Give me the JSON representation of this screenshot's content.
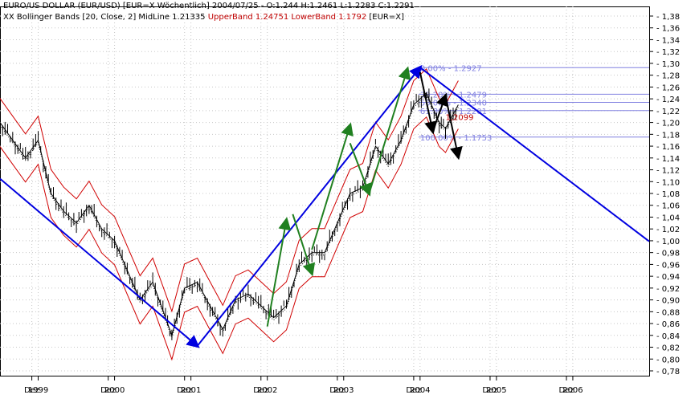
{
  "header": {
    "line1": "EURO/US DOLLAR (EUR/USD) [EUR=X  Wöchentlich] 2004/07/25 - O:1.244 H:1.2461 L:1.2283 C:1.2291",
    "line2_prefix": "XX Bollinger Bands [20, Close, 2] MidLine 1.21335 ",
    "line2_upper": "UpperBand 1.24751 LowerBand 1.1792",
    "line2_suffix": " [EUR=X]"
  },
  "chart_data": {
    "type": "line",
    "y_ticks": [
      "1,38",
      "1,36",
      "1,34",
      "1,32",
      "1,30",
      "1,28",
      "1,26",
      "1,24",
      "1,22",
      "1,20",
      "1,18",
      "1,16",
      "1,14",
      "1,12",
      "1,10",
      "1,08",
      "1,06",
      "1,04",
      "1,02",
      "1,00",
      "0,98",
      "0,96",
      "0,94",
      "0,92",
      "0,90",
      "0,88",
      "0,86",
      "0,84",
      "0,82",
      "0,80",
      "0,78"
    ],
    "ylim": [
      0.78,
      1.38
    ],
    "x_ticks": [
      "Dez",
      "1999",
      "Dez",
      "2000",
      "Dez",
      "2001",
      "Dez",
      "2002",
      "Dez",
      "2003",
      "Dez",
      "2004",
      "Dez",
      "2005",
      "Dez",
      "2006"
    ],
    "xlim": [
      "1998-07",
      "2007-01"
    ],
    "fib_levels": [
      {
        "label": "0.00% - 1.2927",
        "value": 1.2927
      },
      {
        "label": "38.20% - 1.2479",
        "value": 1.2479
      },
      {
        "label": "50.00% - 1.2340",
        "value": 1.234
      },
      {
        "label": "61.80% - 1.2201",
        "value": 1.2201
      },
      {
        "label": "100.00% - 1.1753",
        "value": 1.1753
      }
    ],
    "annotation": {
      "label": "1,2099",
      "value": 1.2099
    },
    "series": [
      {
        "values": [
          [
            "1998-07",
            1.2
          ],
          [
            "1998-09",
            1.17
          ],
          [
            "1998-11",
            1.14
          ],
          [
            "1999-01",
            1.17
          ],
          [
            "1999-03",
            1.08
          ],
          [
            "1999-05",
            1.05
          ],
          [
            "1999-07",
            1.03
          ],
          [
            "1999-09",
            1.06
          ],
          [
            "1999-11",
            1.02
          ],
          [
            "2000-01",
            1.0
          ],
          [
            "2000-03",
            0.95
          ],
          [
            "2000-05",
            0.9
          ],
          [
            "2000-07",
            0.93
          ],
          [
            "2000-09",
            0.87
          ],
          [
            "2000-10",
            0.84
          ],
          [
            "2000-12",
            0.92
          ],
          [
            "2001-02",
            0.93
          ],
          [
            "2001-04",
            0.89
          ],
          [
            "2001-06",
            0.85
          ],
          [
            "2001-08",
            0.9
          ],
          [
            "2001-10",
            0.91
          ],
          [
            "2001-12",
            0.89
          ],
          [
            "2002-02",
            0.87
          ],
          [
            "2002-04",
            0.89
          ],
          [
            "2002-06",
            0.96
          ],
          [
            "2002-08",
            0.98
          ],
          [
            "2002-10",
            0.98
          ],
          [
            "2002-12",
            1.03
          ],
          [
            "2003-02",
            1.08
          ],
          [
            "2003-04",
            1.09
          ],
          [
            "2003-06",
            1.16
          ],
          [
            "2003-08",
            1.13
          ],
          [
            "2003-10",
            1.17
          ],
          [
            "2003-12",
            1.23
          ],
          [
            "2004-02",
            1.25
          ],
          [
            "2004-04",
            1.2
          ],
          [
            "2004-05",
            1.19
          ],
          [
            "2004-07",
            1.23
          ]
        ]
      }
    ]
  }
}
